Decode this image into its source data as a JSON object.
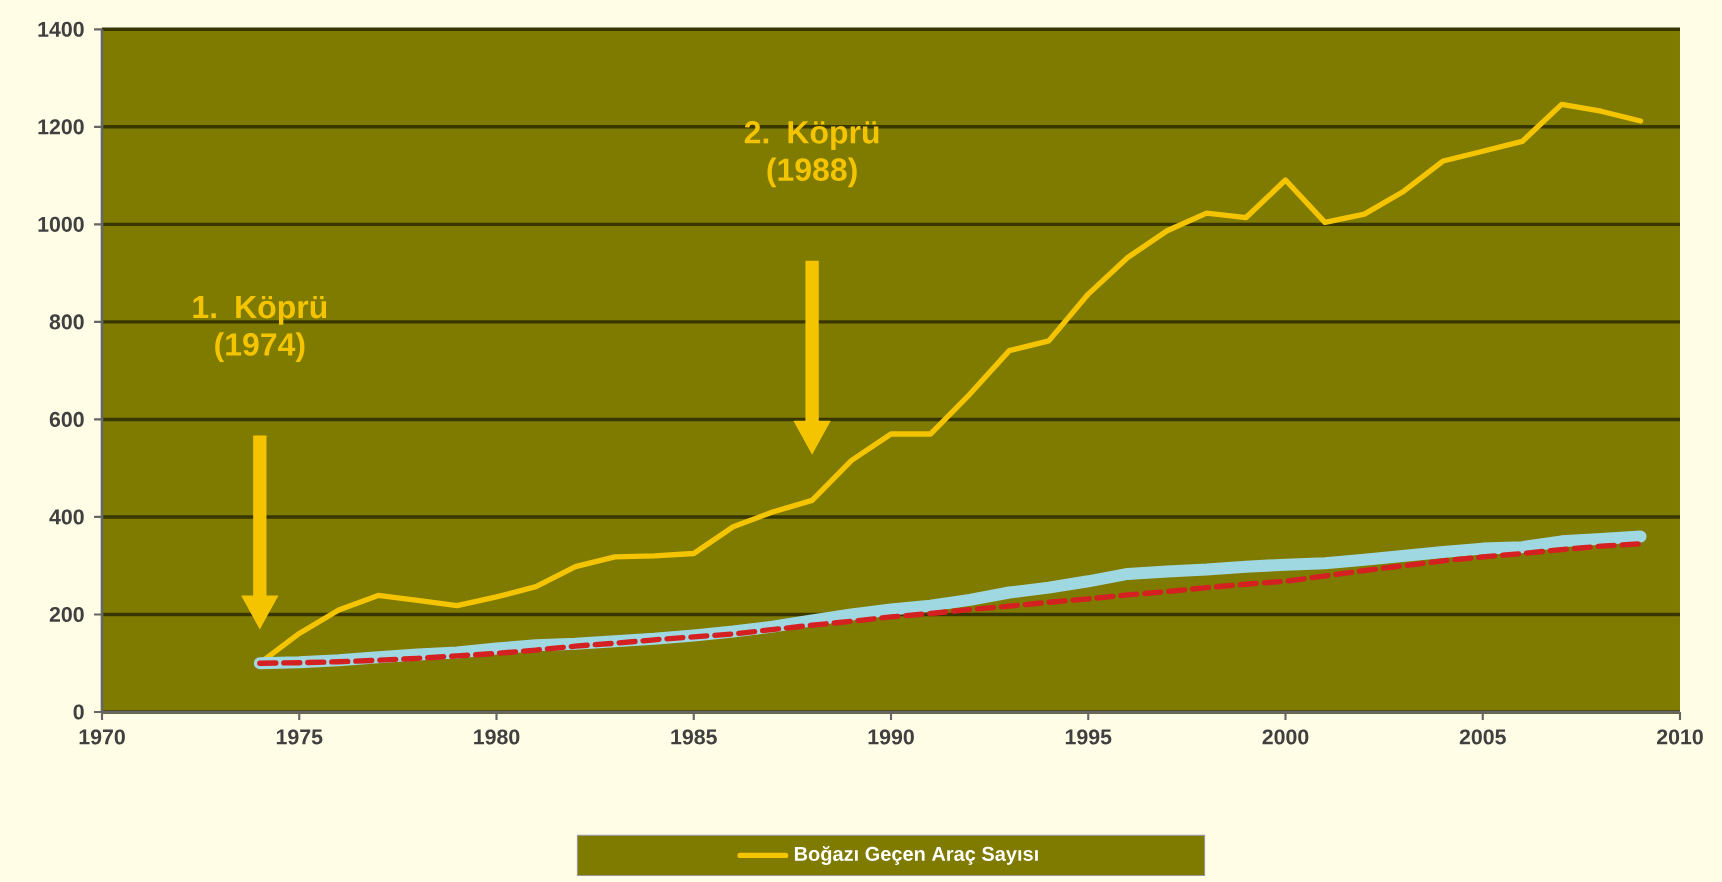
{
  "chart_data": {
    "type": "line",
    "x": [
      1974,
      1975,
      1976,
      1977,
      1978,
      1979,
      1980,
      1981,
      1982,
      1983,
      1984,
      1985,
      1986,
      1987,
      1988,
      1989,
      1990,
      1991,
      1992,
      1993,
      1994,
      1995,
      1996,
      1997,
      1998,
      1999,
      2000,
      2001,
      2002,
      2003,
      2004,
      2005,
      2006,
      2007,
      2008,
      2009
    ],
    "series": [
      {
        "name": "Boğazı Geçen Araç Sayısı",
        "color": "#f5c400",
        "values": [
          100,
          161,
          209,
          239,
          229,
          218,
          236,
          257,
          298,
          318,
          320,
          325,
          380,
          410,
          434,
          516,
          570,
          570,
          652,
          741,
          761,
          857,
          932,
          987,
          1023,
          1014,
          1091,
          1004,
          1021,
          1068,
          1130,
          1150,
          1170,
          1246,
          1232,
          1212
        ]
      },
      {
        "color": "#9fd8e0",
        "values": [
          100,
          102,
          106,
          112,
          118,
          122,
          130,
          137,
          140,
          145,
          150,
          157,
          165,
          175,
          188,
          200,
          210,
          218,
          230,
          245,
          255,
          268,
          283,
          288,
          292,
          298,
          302,
          305,
          312,
          320,
          328,
          335,
          338,
          350,
          355,
          360
        ]
      },
      {
        "color": "#d42020",
        "line_style": "dashed",
        "values": [
          100,
          101,
          103,
          106,
          110,
          115,
          120,
          127,
          135,
          141,
          148,
          154,
          160,
          169,
          178,
          186,
          195,
          202,
          210,
          217,
          225,
          232,
          240,
          247,
          255,
          262,
          268,
          279,
          290,
          300,
          310,
          318,
          325,
          333,
          340,
          345
        ]
      }
    ],
    "xlim": [
      1970,
      2010
    ],
    "ylim": [
      0,
      1400
    ],
    "xticks": [
      1970,
      1975,
      1980,
      1985,
      1990,
      1995,
      2000,
      2005,
      2010
    ],
    "yticks": [
      0,
      200,
      400,
      600,
      800,
      1000,
      1200,
      1400
    ],
    "grid": "y",
    "legend": "bottom",
    "annotations": [
      "1. Köprü (1974)",
      "2. Köprü (1988)"
    ]
  }
}
